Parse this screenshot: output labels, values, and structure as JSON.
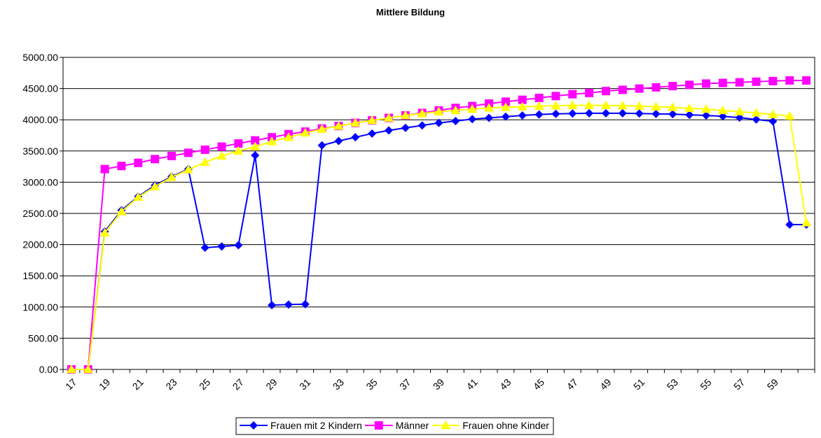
{
  "chart_data": {
    "type": "line",
    "title": "Mittlere Bildung",
    "xlabel": "",
    "ylabel": "",
    "x": [
      17,
      18,
      19,
      20,
      21,
      22,
      23,
      24,
      25,
      26,
      27,
      28,
      29,
      30,
      31,
      32,
      33,
      34,
      35,
      36,
      37,
      38,
      39,
      40,
      41,
      42,
      43,
      44,
      45,
      46,
      47,
      48,
      49,
      50,
      51,
      52,
      53,
      54,
      55,
      56,
      57,
      58,
      59,
      60,
      61
    ],
    "x_tick_labels": [
      "17",
      "19",
      "21",
      "23",
      "25",
      "27",
      "29",
      "31",
      "33",
      "35",
      "37",
      "39",
      "41",
      "43",
      "45",
      "47",
      "49",
      "51",
      "53",
      "55",
      "57",
      "59"
    ],
    "y_tick_labels": [
      "0.00",
      "500.00",
      "1000.00",
      "1500.00",
      "2000.00",
      "2500.00",
      "3000.00",
      "3500.00",
      "4000.00",
      "4500.00",
      "5000.00"
    ],
    "ylim": [
      0,
      5000
    ],
    "grid": true,
    "legend_position": "bottom",
    "series": [
      {
        "name": "Frauen mit 2 Kindern",
        "color": "#0000ff",
        "marker": "diamond",
        "values": [
          0,
          0,
          2210,
          2550,
          2770,
          2950,
          3090,
          3210,
          1950,
          1970,
          1990,
          3430,
          1030,
          1040,
          1045,
          3590,
          3660,
          3720,
          3780,
          3830,
          3870,
          3910,
          3950,
          3980,
          4010,
          4030,
          4050,
          4070,
          4085,
          4095,
          4100,
          4105,
          4105,
          4105,
          4100,
          4095,
          4090,
          4080,
          4070,
          4055,
          4035,
          4005,
          3975,
          2320,
          2320
        ]
      },
      {
        "name": "Männer",
        "color": "#ff00ff",
        "marker": "square",
        "values": [
          0,
          0,
          3210,
          3260,
          3310,
          3370,
          3420,
          3470,
          3520,
          3570,
          3620,
          3670,
          3720,
          3770,
          3810,
          3860,
          3900,
          3950,
          3990,
          4030,
          4070,
          4110,
          4150,
          4190,
          4220,
          4260,
          4290,
          4320,
          4350,
          4380,
          4410,
          4430,
          4460,
          4480,
          4500,
          4520,
          4540,
          4560,
          4580,
          4590,
          4600,
          4610,
          4620,
          4630,
          4630
        ]
      },
      {
        "name": "Frauen ohne Kinder",
        "color": "#ffff00",
        "marker": "triangle",
        "values": [
          0,
          0,
          2190,
          2530,
          2760,
          2930,
          3080,
          3200,
          3320,
          3420,
          3500,
          3570,
          3650,
          3720,
          3790,
          3850,
          3900,
          3950,
          3990,
          4030,
          4070,
          4100,
          4130,
          4150,
          4170,
          4190,
          4200,
          4210,
          4220,
          4225,
          4230,
          4230,
          4230,
          4225,
          4220,
          4210,
          4200,
          4185,
          4170,
          4150,
          4130,
          4110,
          4085,
          4060,
          2350
        ]
      }
    ]
  }
}
